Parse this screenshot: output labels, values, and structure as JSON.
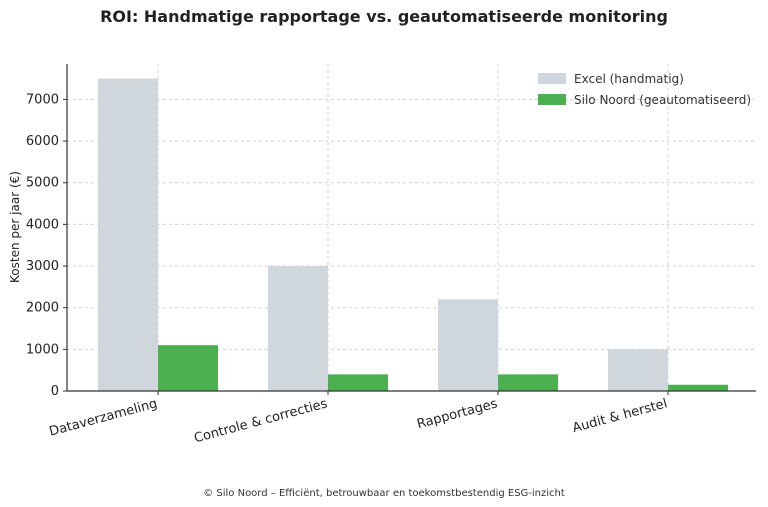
{
  "chart_data": {
    "type": "bar",
    "title": "ROI: Handmatige rapportage vs. geautomatiseerde monitoring",
    "xlabel": "",
    "ylabel": "Kosten per jaar (€)",
    "categories": [
      "Dataverzameling",
      "Controle & correcties",
      "Rapportages",
      "Audit & herstel"
    ],
    "series": [
      {
        "name": "Excel (handmatig)",
        "values": [
          7500,
          3000,
          2200,
          1000
        ],
        "color": "#cfd6dc"
      },
      {
        "name": "Silo Noord (geautomatiseerd)",
        "values": [
          1100,
          400,
          400,
          150
        ],
        "color": "#4caf50"
      }
    ],
    "ylim": [
      0,
      7850
    ],
    "yticks": [
      0,
      1000,
      2000,
      3000,
      4000,
      5000,
      6000,
      7000
    ],
    "grid": true,
    "legend": "top-right",
    "footer": "© Silo Noord – Efficiënt, betrouwbaar en toekomstbestendig ESG-inzicht"
  }
}
